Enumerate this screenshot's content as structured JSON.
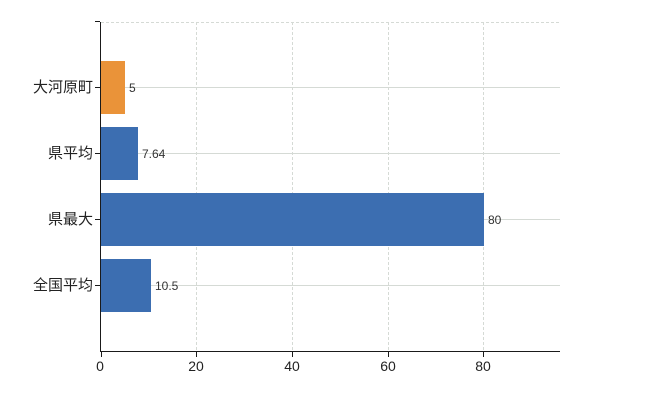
{
  "chart_data": {
    "type": "bar",
    "orientation": "horizontal",
    "title": "",
    "categories": [
      "大河原町",
      "県平均",
      "県最大",
      "全国平均"
    ],
    "values": [
      5,
      7.64,
      80,
      10.5
    ],
    "value_labels": [
      "5",
      "7.64",
      "80",
      "10.5"
    ],
    "bar_colors": [
      "#ea9339",
      "#3c6eb1",
      "#3c6eb1",
      "#3c6eb1"
    ],
    "x_ticks": [
      0,
      20,
      40,
      60,
      80
    ],
    "xlim": [
      0,
      96
    ],
    "grid": true,
    "legend": false
  },
  "colors": {
    "bar_orange": "#ea9339",
    "bar_blue": "#3c6eb1",
    "grid": "#d5dad5",
    "axis": "#1a1a1a",
    "text": "#222222",
    "background": "#ffffff"
  }
}
